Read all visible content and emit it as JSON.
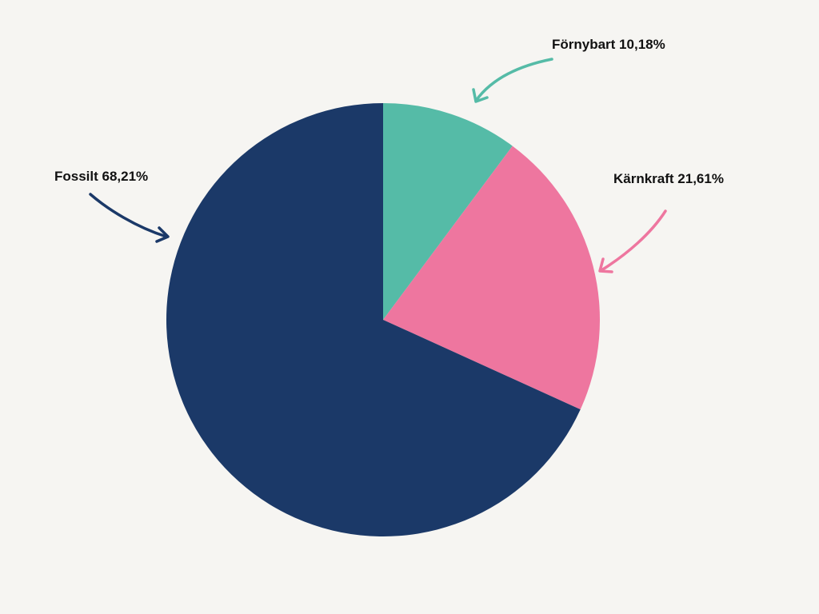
{
  "chart_data": {
    "type": "pie",
    "slices": [
      {
        "name": "Förnybart",
        "value": 10.18,
        "label": "Förnybart 10,18%",
        "color": "#55bba7"
      },
      {
        "name": "Kärnkraft",
        "value": 21.61,
        "label": "Kärnkraft 21,61%",
        "color": "#ee769f"
      },
      {
        "name": "Fossilt",
        "value": 68.21,
        "label": "Fossilt 68,21%",
        "color": "#1b3968"
      }
    ],
    "start_angle": "12 o'clock",
    "direction": "clockwise",
    "legend": "none",
    "labels_with_arrows": true
  }
}
